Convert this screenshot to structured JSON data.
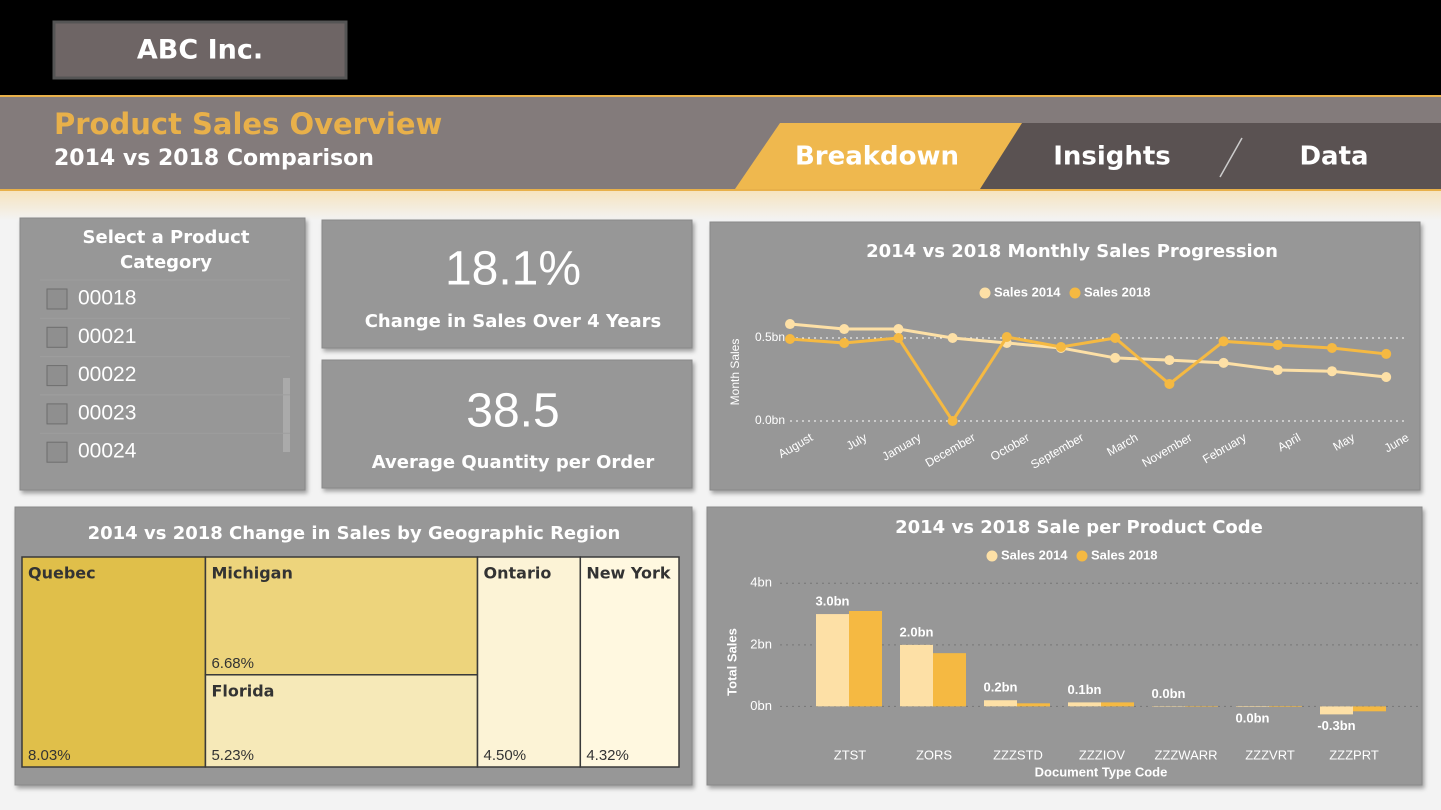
{
  "header": {
    "company": "ABC Inc.",
    "title": "Product Sales Overview",
    "subtitle": "2014 vs 2018 Comparison",
    "tabs": [
      "Breakdown",
      "Insights",
      "Data"
    ]
  },
  "slicer": {
    "title": [
      "Select a Product",
      "Category"
    ],
    "items": [
      "00018",
      "00021",
      "00022",
      "00023",
      "00024"
    ]
  },
  "kpis": [
    {
      "value": "18.1%",
      "label": "Change in Sales Over 4 Years"
    },
    {
      "value": "38.5",
      "label": "Average Quantity per Order"
    }
  ],
  "chart_data": [
    {
      "type": "line",
      "title": "2014 vs 2018 Monthly Sales Progression",
      "y_label": "Month Sales",
      "categories": [
        "August",
        "July",
        "January",
        "December",
        "October",
        "September",
        "March",
        "November",
        "February",
        "April",
        "May",
        "June"
      ],
      "series": [
        {
          "name": "Sales 2014",
          "color": "#fde0a6",
          "values": [
            0.584,
            0.554,
            0.554,
            0.5,
            0.47,
            0.44,
            0.38,
            0.367,
            0.35,
            0.307,
            0.3,
            0.265
          ]
        },
        {
          "name": "Sales 2018",
          "color": "#f5b942",
          "values": [
            0.494,
            0.47,
            0.5,
            0.0,
            0.506,
            0.446,
            0.5,
            0.223,
            0.48,
            0.458,
            0.44,
            0.404
          ]
        }
      ],
      "ylim": [
        0,
        0.6
      ],
      "yticks": [
        {
          "value": 0,
          "label": "0.0bn"
        },
        {
          "value": 0.5,
          "label": "0.5bn"
        }
      ],
      "grid": true
    },
    {
      "type": "treemap",
      "title": "2014 vs 2018 Change in Sales by Geographic Region",
      "categories": [
        "Quebec",
        "Michigan",
        "Florida",
        "Ontario",
        "New York"
      ],
      "values": [
        8.03,
        6.68,
        5.23,
        4.5,
        4.32
      ],
      "value_labels": [
        "8.03%",
        "6.68%",
        "5.23%",
        "4.50%",
        "4.32%"
      ],
      "colors": [
        "#e0bf4a",
        "#edd47c",
        "#f6e9b8",
        "#fcf3d6",
        "#fff8e0"
      ]
    },
    {
      "type": "bar",
      "title": "2014 vs 2018 Sale per Product Code",
      "x_label": "Document Type Code",
      "y_label": "Total Sales",
      "categories": [
        "ZTST",
        "ZORS",
        "ZZZSTD",
        "ZZZIOV",
        "ZZZWARR",
        "ZZZVRT",
        "ZZZPRT"
      ],
      "series": [
        {
          "name": "Sales 2014",
          "color": "#fde0a6",
          "values": [
            3.0,
            2.0,
            0.2,
            0.13,
            0,
            -0.02,
            -0.26
          ],
          "value_labels": [
            "3.0bn",
            "2.0bn",
            "0.2bn",
            "0.1bn",
            "0.0bn",
            "0.0bn",
            "-0.3bn"
          ]
        },
        {
          "name": "Sales 2018",
          "color": "#f5b942",
          "values": [
            3.1,
            1.73,
            0.1,
            0.13,
            0,
            -0.02,
            -0.16
          ]
        }
      ],
      "ylim": [
        -0.8,
        4.4
      ],
      "yticks": [
        {
          "value": 0,
          "label": "0bn"
        },
        {
          "value": 2,
          "label": "2bn"
        },
        {
          "value": 4,
          "label": "4bn"
        }
      ],
      "grid": true
    }
  ]
}
